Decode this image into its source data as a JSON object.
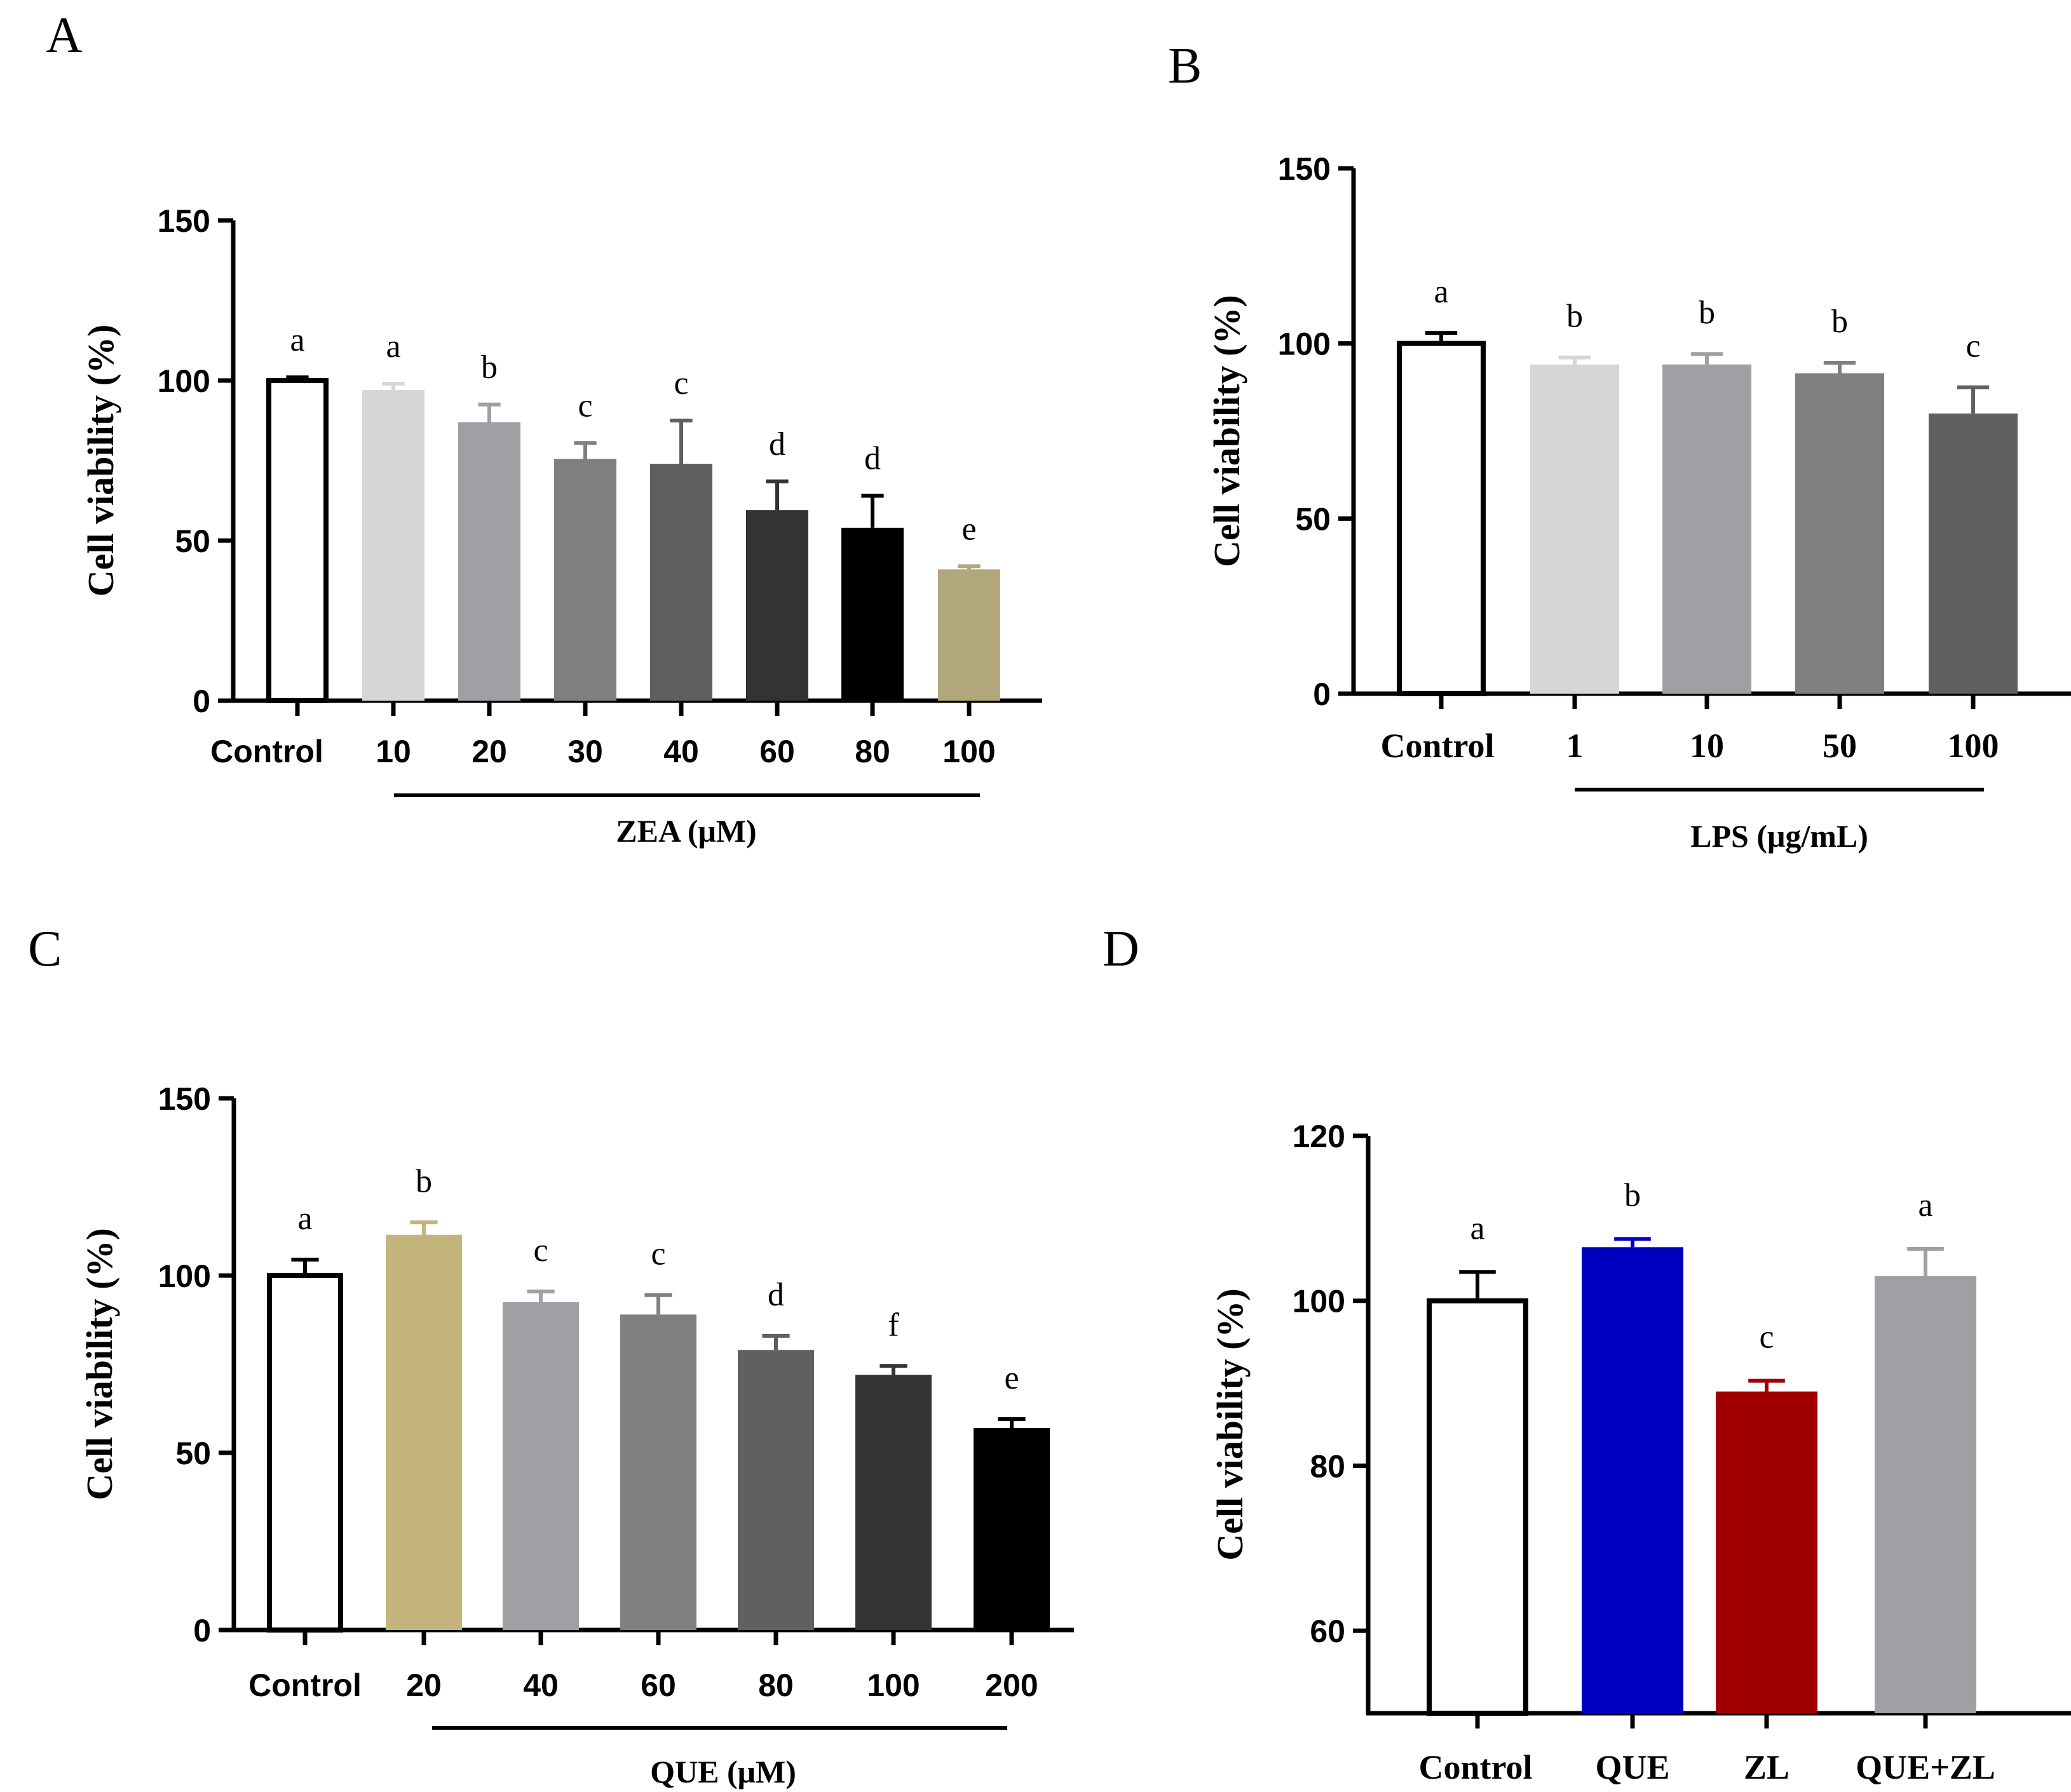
{
  "chart_data": [
    {
      "panel": "A",
      "type": "bar",
      "ylabel": "Cell viability (%)",
      "ylim": [
        0,
        150
      ],
      "yticks": [
        0,
        50,
        100,
        150
      ],
      "categories": [
        "Control",
        "10",
        "20",
        "30",
        "40",
        "60",
        "80",
        "100"
      ],
      "values": [
        100,
        97,
        87,
        75.5,
        74,
        59.5,
        54,
        41
      ],
      "errors": [
        1,
        2,
        5.5,
        5,
        13.5,
        9,
        10,
        1
      ],
      "significance": [
        "a",
        "a",
        "b",
        "c",
        "c",
        "d",
        "d",
        "e"
      ],
      "colors": [
        "#ffffff",
        "#d6d6d6",
        "#a0a0a4",
        "#7f7f7f",
        "#5f5f5f",
        "#333333",
        "#000000",
        "#b2a77a"
      ],
      "group_label": "ZEA (μM)",
      "group_span": [
        "10",
        "100"
      ]
    },
    {
      "panel": "B",
      "type": "bar",
      "ylabel": "Cell viability (%)",
      "ylim": [
        0,
        150
      ],
      "yticks": [
        0,
        50,
        100,
        150
      ],
      "categories": [
        "Control",
        "1",
        "10",
        "50",
        "100"
      ],
      "values": [
        100,
        94,
        94,
        91.5,
        80
      ],
      "errors": [
        3,
        2,
        3,
        3,
        7.5
      ],
      "significance": [
        "a",
        "b",
        "b",
        "b",
        "c"
      ],
      "colors": [
        "#ffffff",
        "#d6d6d6",
        "#a0a0a4",
        "#808080",
        "#606060"
      ],
      "group_label": "LPS (μg/mL)",
      "group_span": [
        "1",
        "100"
      ]
    },
    {
      "panel": "C",
      "type": "bar",
      "ylabel": "Cell viability (%)",
      "ylim": [
        0,
        150
      ],
      "yticks": [
        0,
        50,
        100,
        150
      ],
      "categories": [
        "Control",
        "20",
        "40",
        "60",
        "80",
        "100",
        "200"
      ],
      "values": [
        100,
        111.5,
        92.5,
        89,
        79,
        72,
        57
      ],
      "errors": [
        4.5,
        3.5,
        3,
        5.5,
        4,
        2.5,
        2.5
      ],
      "significance": [
        "a",
        "b",
        "c",
        "c",
        "d",
        "f",
        "e"
      ],
      "colors": [
        "#ffffff",
        "#c2b47a",
        "#a0a0a4",
        "#808080",
        "#606060",
        "#333333",
        "#000000"
      ],
      "group_label": "QUE (μM)",
      "group_span": [
        "20",
        "200"
      ]
    },
    {
      "panel": "D",
      "type": "bar",
      "ylabel": "Cell viability (%)",
      "ylim": [
        50,
        120
      ],
      "yticks": [
        60,
        80,
        100,
        120
      ],
      "categories": [
        "Control",
        "QUE",
        "ZL",
        "QUE+ZL"
      ],
      "values": [
        100,
        106.5,
        89,
        103
      ],
      "errors": [
        3.5,
        1,
        1.3,
        3.3
      ],
      "significance": [
        "a",
        "b",
        "c",
        "a"
      ],
      "colors": [
        "#ffffff",
        "#0000c0",
        "#a00000",
        "#a0a0a4"
      ],
      "group_label": "",
      "group_span": null
    }
  ]
}
